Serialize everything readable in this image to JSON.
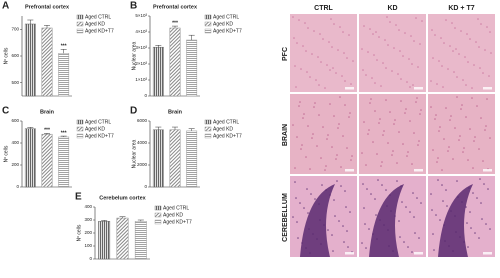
{
  "chart_data": [
    {
      "type": "bar",
      "panel": "A",
      "title": "Prefrontal cortex",
      "y_label": "Nº cells",
      "ylim": [
        450,
        750
      ],
      "yticks": [
        500,
        600,
        700
      ],
      "series": [
        {
          "name": "Aged CTRL",
          "color": "#666",
          "values": [
            720
          ],
          "errors": [
            15
          ]
        },
        {
          "name": "Aged KD",
          "color": "#888",
          "values": [
            705
          ],
          "errors": [
            10
          ]
        },
        {
          "name": "Aged KD+T7",
          "color": "#999",
          "values": [
            610
          ],
          "errors": [
            15
          ],
          "annotation": "***"
        }
      ]
    },
    {
      "type": "bar",
      "panel": "B",
      "title": "Prefrontal cortex",
      "y_label": "Nuclear area",
      "ylim": [
        0,
        5000
      ],
      "yticks": [
        0,
        {
          "value": 1000,
          "label": "1×10³"
        },
        {
          "value": 2000,
          "label": "2×10³"
        },
        {
          "value": 3000,
          "label": "3×10³"
        },
        {
          "value": 4000,
          "label": "4×10³"
        },
        {
          "value": 5000,
          "label": "5×10³"
        }
      ],
      "series": [
        {
          "name": "Aged CTRL",
          "color": "#666",
          "values": [
            3050
          ],
          "errors": [
            120
          ]
        },
        {
          "name": "Aged KD",
          "color": "#888",
          "values": [
            4250
          ],
          "errors": [
            120
          ],
          "annotation": "***"
        },
        {
          "name": "Aged KD+T7",
          "color": "#999",
          "values": [
            3500
          ],
          "errors": [
            300
          ]
        }
      ]
    },
    {
      "type": "bar",
      "panel": "C",
      "title": "Brain",
      "y_label": "Nº cells",
      "ylim": [
        0,
        600
      ],
      "yticks": [
        0,
        200,
        400,
        600
      ],
      "series": [
        {
          "name": "Aged CTRL",
          "color": "#666",
          "values": [
            530
          ],
          "errors": [
            12
          ]
        },
        {
          "name": "Aged KD",
          "color": "#888",
          "values": [
            480
          ],
          "errors": [
            8
          ],
          "annotation": "***"
        },
        {
          "name": "Aged KD+T7",
          "color": "#999",
          "values": [
            455
          ],
          "errors": [
            8
          ],
          "annotation": "***"
        }
      ]
    },
    {
      "type": "bar",
      "panel": "D",
      "title": "Brain",
      "y_label": "Nuclear area",
      "ylim": [
        0,
        6000
      ],
      "yticks": [
        0,
        2000,
        4000,
        6000
      ],
      "series": [
        {
          "name": "Aged CTRL",
          "color": "#666",
          "values": [
            5200
          ],
          "errors": [
            250
          ]
        },
        {
          "name": "Aged KD",
          "color": "#888",
          "values": [
            5200
          ],
          "errors": [
            250
          ]
        },
        {
          "name": "Aged KD+T7",
          "color": "#999",
          "values": [
            5100
          ],
          "errors": [
            200
          ]
        }
      ]
    },
    {
      "type": "bar",
      "panel": "E",
      "title": "Cerebelum cortex",
      "y_label": "Nº cells",
      "ylim": [
        0,
        400
      ],
      "yticks": [
        0,
        100,
        200,
        300,
        400
      ],
      "series": [
        {
          "name": "Aged CTRL",
          "color": "#666",
          "values": [
            290
          ],
          "errors": [
            8
          ]
        },
        {
          "name": "Aged KD",
          "color": "#888",
          "values": [
            315
          ],
          "errors": [
            10
          ]
        },
        {
          "name": "Aged KD+T7",
          "color": "#999",
          "values": [
            290
          ],
          "errors": [
            10
          ]
        }
      ]
    }
  ],
  "histology": {
    "columns": [
      "CTRL",
      "KD",
      "KD + T7"
    ],
    "rows": [
      "PFC",
      "BRAIN",
      "CEREBELLUM"
    ]
  }
}
